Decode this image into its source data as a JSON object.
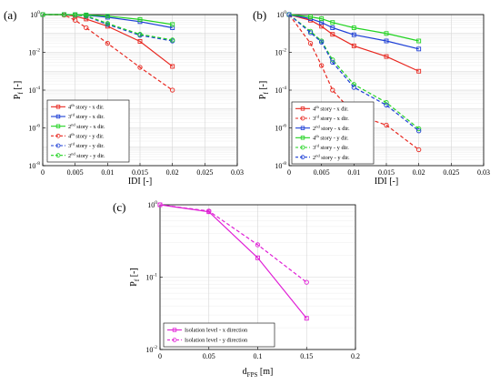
{
  "chart_data": [
    {
      "type": "line",
      "panel_label": "(a)",
      "xlabel": "IDI [-]",
      "ylabel": "P",
      "ylabel_sub": "f",
      "ylabel_suffix": " [-]",
      "xlim": [
        0,
        0.03
      ],
      "ylim_log10": [
        -8,
        0
      ],
      "y_scale": "log",
      "grid": true,
      "legend_position": "lower-left",
      "x_ticks": [
        "0",
        "0.005",
        "0.01",
        "0.015",
        "0.02",
        "0.025",
        "0.03"
      ],
      "x": [
        0,
        0.0033,
        0.005,
        0.0067,
        0.01,
        0.015,
        0.02
      ],
      "series": [
        {
          "name": "4",
          "sup": "th",
          "rest": " story - x dir.",
          "color": "#e8271f",
          "dash": false,
          "marker": "square",
          "values": [
            1,
            1,
            0.82,
            0.58,
            0.24,
            0.038,
            0.0018
          ]
        },
        {
          "name": "3",
          "sup": "rd",
          "rest": " story - x dir.",
          "color": "#1d3fd6",
          "dash": false,
          "marker": "square",
          "values": [
            1,
            1,
            0.98,
            0.92,
            0.72,
            0.42,
            0.2
          ]
        },
        {
          "name": "2",
          "sup": "nd",
          "rest": " story - x dir.",
          "color": "#21d321",
          "dash": false,
          "marker": "square",
          "values": [
            1,
            1,
            0.99,
            0.96,
            0.83,
            0.55,
            0.3
          ]
        },
        {
          "name": "4",
          "sup": "th",
          "rest": " story - y dir.",
          "color": "#e8271f",
          "dash": true,
          "marker": "circle",
          "values": [
            1,
            0.95,
            0.5,
            0.2,
            0.03,
            0.0016,
            0.0001
          ]
        },
        {
          "name": "3",
          "sup": "rd",
          "rest": " story - y dir.",
          "color": "#1d3fd6",
          "dash": true,
          "marker": "circle",
          "values": [
            1,
            1,
            0.94,
            0.82,
            0.3,
            0.08,
            0.04
          ]
        },
        {
          "name": "2",
          "sup": "nd",
          "rest": " story - y dir.",
          "color": "#21d321",
          "dash": true,
          "marker": "circle",
          "values": [
            1,
            1,
            0.96,
            0.86,
            0.34,
            0.09,
            0.045
          ]
        }
      ]
    },
    {
      "type": "line",
      "panel_label": "(b)",
      "xlabel": "IDI [-]",
      "ylabel": "P",
      "ylabel_sub": "f",
      "ylabel_suffix": " [-]",
      "xlim": [
        0,
        0.03
      ],
      "ylim_log10": [
        -8,
        0
      ],
      "y_scale": "log",
      "grid": true,
      "legend_position": "lower-left",
      "x_ticks": [
        "0",
        "0.005",
        "0.01",
        "0.015",
        "0.02",
        "0.025",
        "0.03"
      ],
      "x": [
        0,
        0.0033,
        0.005,
        0.0067,
        0.01,
        0.015,
        0.02
      ],
      "series": [
        {
          "name": "4",
          "sup": "th",
          "rest": " story - x dir.",
          "color": "#e8271f",
          "dash": false,
          "marker": "square",
          "values": [
            1,
            0.5,
            0.24,
            0.09,
            0.022,
            0.006,
            0.001
          ]
        },
        {
          "name": "3",
          "sup": "rd",
          "rest": " story - x dir.",
          "color": "#e8271f",
          "dash": true,
          "marker": "circle",
          "values": [
            1,
            0.03,
            0.002,
            0.0001,
            5.5e-06,
            1.4e-06,
            7e-08
          ]
        },
        {
          "name": "2",
          "sup": "nd",
          "rest": " story - x dir.",
          "color": "#1d3fd6",
          "dash": false,
          "marker": "square",
          "values": [
            1,
            0.6,
            0.38,
            0.2,
            0.085,
            0.04,
            0.015
          ]
        },
        {
          "name": "4",
          "sup": "th",
          "rest": " story - y dir.",
          "color": "#21d321",
          "dash": false,
          "marker": "square",
          "values": [
            1,
            0.76,
            0.6,
            0.38,
            0.2,
            0.1,
            0.04
          ]
        },
        {
          "name": "3",
          "sup": "rd",
          "rest": " story - y dir.",
          "color": "#21d321",
          "dash": true,
          "marker": "circle",
          "values": [
            1,
            0.13,
            0.04,
            0.004,
            0.0002,
            2.2e-05,
            9e-07
          ]
        },
        {
          "name": "2",
          "sup": "nd",
          "rest": " story - y dir.",
          "color": "#1d3fd6",
          "dash": true,
          "marker": "circle",
          "values": [
            1,
            0.11,
            0.035,
            0.003,
            0.00014,
            1.6e-05,
            7e-07
          ]
        }
      ]
    },
    {
      "type": "line",
      "panel_label": "(c)",
      "xlabel": "d",
      "xlabel_sub": "FPS",
      "xlabel_suffix": " [m]",
      "ylabel": "P",
      "ylabel_sub": "f",
      "ylabel_suffix": " [-]",
      "xlim": [
        0,
        0.2
      ],
      "ylim_log10": [
        -2,
        0
      ],
      "y_scale": "log",
      "grid": true,
      "legend_position": "lower-left",
      "x_ticks": [
        "0",
        "0.05",
        "0.1",
        "0.15",
        "0.2"
      ],
      "x": [
        0,
        0.05,
        0.1,
        0.15
      ],
      "series": [
        {
          "name": "Isolation level - x direction",
          "color": "#e020d6",
          "dash": false,
          "marker": "square",
          "values": [
            1,
            0.8,
            0.185,
            0.027
          ]
        },
        {
          "name": "Isolation level - y direction",
          "color": "#e020d6",
          "dash": true,
          "marker": "circle",
          "values": [
            1,
            0.82,
            0.28,
            0.085
          ]
        }
      ]
    }
  ]
}
